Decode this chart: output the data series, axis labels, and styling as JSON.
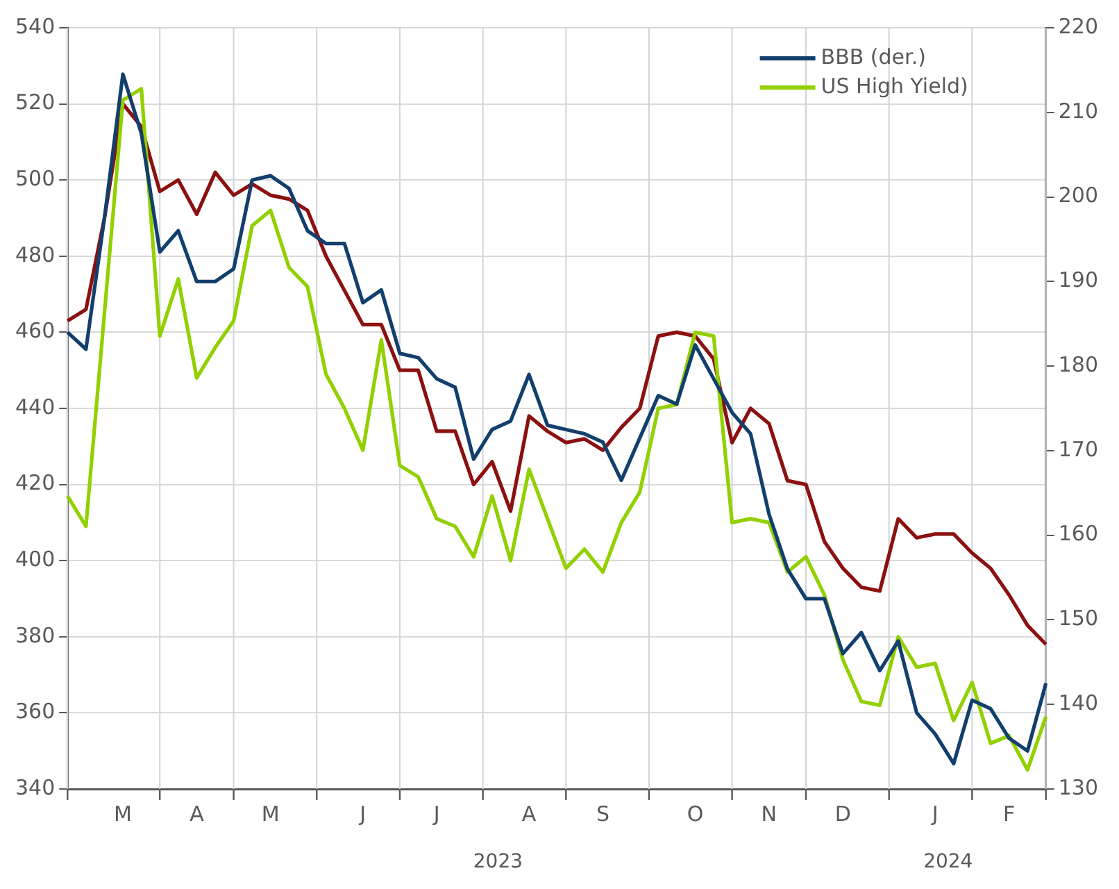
{
  "chart_data": {
    "type": "line",
    "categories": [
      null,
      null,
      null,
      "M",
      null,
      null,
      null,
      "A",
      null,
      null,
      null,
      "M",
      null,
      null,
      null,
      null,
      "J",
      null,
      null,
      null,
      "J",
      null,
      null,
      null,
      null,
      "A",
      null,
      null,
      null,
      "S",
      null,
      null,
      null,
      null,
      "O",
      null,
      null,
      null,
      "N",
      null,
      null,
      null,
      "D",
      null,
      null,
      null,
      null,
      "J",
      null,
      null,
      null,
      "F",
      null,
      null
    ],
    "series": [
      {
        "name": "BBB (der.)",
        "color": "#123f6d",
        "axis": "y2",
        "values": [
          184,
          182,
          197.5,
          214.5,
          207.5,
          193.5,
          196,
          190,
          190,
          191.5,
          202,
          202.5,
          201,
          196,
          194.5,
          194.5,
          187.5,
          189,
          181.5,
          181,
          178.5,
          177.5,
          169,
          172.5,
          173.5,
          179,
          173,
          172.5,
          172,
          171,
          166.5,
          171.5,
          176.5,
          175.5,
          182.5,
          178.5,
          174.5,
          172,
          162.5,
          156,
          152.5,
          152.5,
          146,
          148.5,
          144,
          147.5,
          139,
          136.5,
          133,
          140.5,
          139.5,
          136,
          134.5,
          142.5
        ]
      },
      {
        "name": "US High Yield)",
        "color": "#92d000",
        "values": [
          417,
          409,
          465,
          521,
          524,
          459,
          474,
          448,
          456,
          463,
          488,
          492,
          477,
          472,
          449,
          440,
          429,
          458,
          425,
          422,
          411,
          409,
          401,
          417,
          400,
          424,
          411,
          398,
          403,
          397,
          410,
          418,
          440,
          441,
          460,
          459,
          410,
          411,
          410,
          397,
          401,
          391,
          374,
          363,
          362,
          380,
          372,
          373,
          358,
          368,
          352,
          354,
          345,
          359
        ]
      },
      {
        "color": "#8b1111",
        "values": [
          463,
          466,
          490,
          520,
          514,
          497,
          500,
          491,
          502,
          496,
          499,
          496,
          495,
          492,
          480,
          471,
          462,
          462,
          450,
          450,
          434,
          434,
          420,
          426,
          413,
          438,
          434,
          431,
          432,
          429,
          435,
          440,
          459,
          460,
          459,
          453,
          431,
          440,
          436,
          421,
          420,
          405,
          398,
          393,
          392,
          411,
          406,
          407,
          407,
          402,
          398,
          391,
          383,
          378
        ]
      }
    ],
    "ylim": [
      340,
      540
    ],
    "yticks": [
      340,
      360,
      380,
      400,
      420,
      440,
      460,
      480,
      500,
      520,
      540
    ],
    "y2lim": [
      130,
      220
    ],
    "y2ticks": [
      130,
      140,
      150,
      160,
      170,
      180,
      190,
      200,
      210,
      220
    ],
    "annotations": [
      "2023",
      "2024"
    ],
    "grid": true,
    "legend": "top right"
  }
}
